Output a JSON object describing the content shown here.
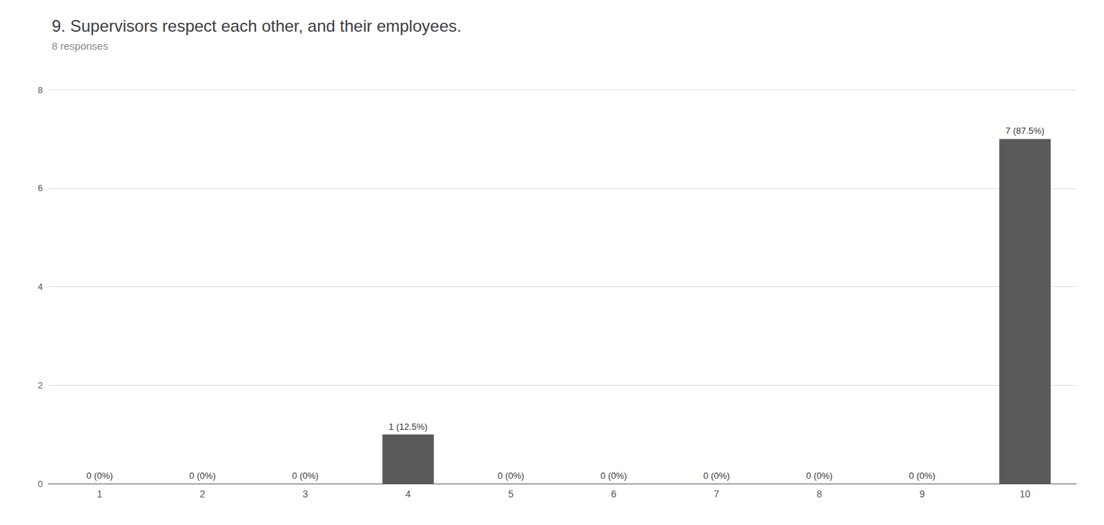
{
  "chart_data": {
    "type": "bar",
    "title": "9. Supervisors respect each other, and their employees.",
    "subtitle": "8 responses",
    "categories": [
      1,
      2,
      3,
      4,
      5,
      6,
      7,
      8,
      9,
      10
    ],
    "values": [
      0,
      0,
      0,
      1,
      0,
      0,
      0,
      0,
      0,
      7
    ],
    "value_labels": [
      "0 (0%)",
      "0 (0%)",
      "0 (0%)",
      "1 (12.5%)",
      "0 (0%)",
      "0 (0%)",
      "0 (0%)",
      "0 (0%)",
      "0 (0%)",
      "7 (87.5%)"
    ],
    "color": "#595959",
    "ylim": [
      0,
      8
    ],
    "yticks": [
      0,
      2,
      4,
      6,
      8
    ],
    "grid": true
  }
}
